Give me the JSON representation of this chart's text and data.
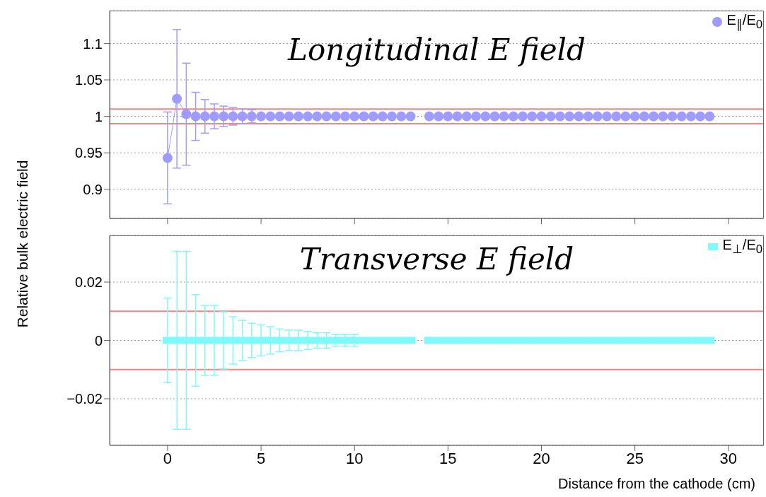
{
  "chart_data": [
    {
      "type": "line",
      "title": "Longitudinal E field",
      "ylabel": "Relative bulk electric field",
      "x": [
        0,
        0.5,
        1,
        1.5,
        2,
        2.5,
        3,
        3.5,
        4,
        4.5,
        5,
        5.5,
        6,
        6.5,
        7,
        7.5,
        8,
        8.5,
        9,
        9.5,
        10,
        10.5,
        11,
        11.5,
        12,
        12.5,
        13,
        13.5,
        14,
        14.5,
        15,
        15.5,
        16,
        16.5,
        17,
        17.5,
        18,
        18.5,
        19,
        19.5,
        20,
        20.5,
        21,
        21.5,
        22,
        22.5,
        23,
        23.5,
        24,
        24.5,
        25,
        25.5,
        26,
        26.5,
        27,
        27.5,
        28,
        28.5,
        29
      ],
      "series": [
        {
          "name": "E$_{∥}$/E$_{0}$",
          "color": "#9f9bff",
          "marker": "circle",
          "values": [
            0.943,
            1.024,
            1.003,
            1,
            1,
            1,
            1,
            1,
            1,
            1,
            1,
            1,
            1,
            1,
            1,
            1,
            1,
            1,
            1,
            1,
            1,
            1,
            1,
            1,
            1,
            1,
            1,
            null,
            1,
            1,
            1,
            1,
            1,
            1,
            1,
            1,
            1,
            1,
            1,
            1,
            1,
            1,
            1,
            1,
            1,
            1,
            1,
            1,
            1,
            1,
            1,
            1,
            1,
            1,
            1,
            1,
            1,
            1,
            1
          ],
          "errors": [
            0.063,
            0.095,
            0.07,
            0.033,
            0.023,
            0.017,
            0.014,
            0.012,
            0.01,
            0.009,
            null,
            null,
            null,
            null,
            null,
            null,
            null,
            null,
            null,
            null,
            null,
            null,
            null,
            null,
            null,
            null,
            null,
            null,
            null,
            null,
            null,
            null,
            null,
            null,
            null,
            null,
            null,
            null,
            null,
            null,
            null,
            null,
            null,
            null,
            null,
            null,
            null,
            null,
            null,
            null,
            null,
            null,
            null,
            null,
            null,
            null,
            null,
            null,
            null
          ]
        }
      ],
      "xlim": [
        -3.1,
        31.9
      ],
      "xticks": [
        0,
        5,
        10,
        15,
        20,
        25,
        30
      ],
      "ylim": [
        0.86,
        1.145
      ],
      "yticks": [
        0.9,
        0.95,
        1,
        1.05,
        1.1
      ],
      "ref_lines": [
        {
          "axis": "y",
          "value": 1.01,
          "color": "#ff8080"
        },
        {
          "axis": "y",
          "value": 0.99,
          "color": "#ff8080"
        }
      ],
      "grid": "y",
      "legend": "top right",
      "tick_labels": "y"
    },
    {
      "type": "scatter",
      "title": "Transverse E field",
      "xlabel": "Distance from the cathode (cm)",
      "x": [
        0,
        0.5,
        1,
        1.5,
        2,
        2.5,
        3,
        3.5,
        4,
        4.5,
        5,
        5.5,
        6,
        6.5,
        7,
        7.5,
        8,
        8.5,
        9,
        9.5,
        10,
        10.5,
        11,
        11.5,
        12,
        12.5,
        13,
        13.5,
        14,
        14.5,
        15,
        15.5,
        16,
        16.5,
        17,
        17.5,
        18,
        18.5,
        19,
        19.5,
        20,
        20.5,
        21,
        21.5,
        22,
        22.5,
        23,
        23.5,
        24,
        24.5,
        25,
        25.5,
        26,
        26.5,
        27,
        27.5,
        28,
        28.5,
        29
      ],
      "series": [
        {
          "name": "E$_{⊥}$/E$_{0}$",
          "color": "#7ff9f9",
          "marker": "square",
          "values": [
            0,
            0,
            0,
            0,
            0,
            0,
            0,
            0,
            0,
            0,
            0,
            0,
            0,
            0,
            0,
            0,
            0,
            0,
            0,
            0,
            0,
            0,
            0,
            0,
            0,
            0,
            0,
            null,
            0,
            0,
            0,
            0,
            0,
            0,
            0,
            0,
            0,
            0,
            0,
            0,
            0,
            0,
            0,
            0,
            0,
            0,
            0,
            0,
            0,
            0,
            0,
            0,
            0,
            0,
            0,
            0,
            0,
            0,
            0
          ],
          "errors": [
            0.0145,
            0.0305,
            0.0305,
            0.0157,
            0.012,
            0.012,
            0.0098,
            0.0081,
            0.0069,
            0.0059,
            0.0053,
            0.0047,
            0.0039,
            0.0035,
            0.0035,
            0.0031,
            0.0026,
            0.0026,
            0.002,
            0.002,
            0.002,
            null,
            null,
            null,
            null,
            null,
            null,
            null,
            null,
            null,
            null,
            null,
            null,
            null,
            null,
            null,
            null,
            null,
            null,
            null,
            null,
            null,
            null,
            null,
            null,
            null,
            null,
            null,
            null,
            null,
            null,
            null,
            null,
            null,
            null,
            null,
            null,
            null,
            null
          ]
        }
      ],
      "xlim": [
        -3.1,
        31.9
      ],
      "xticks": [
        0,
        5,
        10,
        15,
        20,
        25,
        30
      ],
      "ylim": [
        -0.036,
        0.036
      ],
      "yticks": [
        {
          "value": -0.02,
          "label": "−0.02"
        },
        0,
        0.02
      ],
      "ref_lines": [
        {
          "axis": "y",
          "value": 0.01,
          "color": "#ff8080"
        },
        {
          "axis": "y",
          "value": -0.01,
          "color": "#ff8080"
        }
      ],
      "grid": "y",
      "legend": "top right"
    }
  ]
}
